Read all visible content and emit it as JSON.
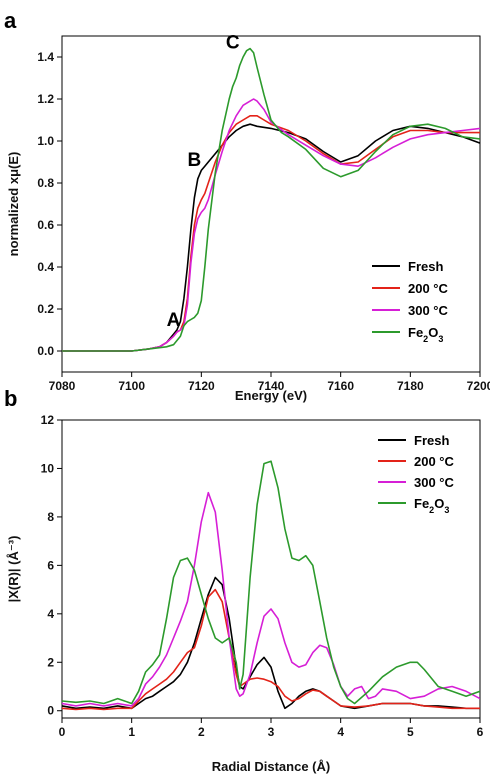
{
  "chart_data": [
    {
      "type": "line",
      "panel_label": "a",
      "xlabel": "Energy (eV)",
      "ylabel": "normalized xμ(E)",
      "xlim": [
        7080,
        7200
      ],
      "ylim": [
        -0.1,
        1.5
      ],
      "xticks": [
        "7080",
        "7100",
        "7120",
        "7140",
        "7160",
        "7180",
        "7200"
      ],
      "yticks": [
        "0.0",
        "0.2",
        "0.4",
        "0.6",
        "0.8",
        "1.0",
        "1.2",
        "1.4"
      ],
      "legend_position": "bottom-right",
      "annotations": [
        {
          "text": "A",
          "x": 7112,
          "y": 0.12
        },
        {
          "text": "B",
          "x": 7118,
          "y": 0.88
        },
        {
          "text": "C",
          "x": 7129,
          "y": 1.44
        }
      ],
      "series": [
        {
          "name": "Fresh",
          "color": "#000000",
          "x": [
            7080,
            7100,
            7105,
            7108,
            7110,
            7112,
            7113,
            7114,
            7115,
            7116,
            7117,
            7118,
            7119,
            7120,
            7121,
            7122,
            7124,
            7126,
            7128,
            7130,
            7132,
            7134,
            7136,
            7140,
            7145,
            7150,
            7155,
            7160,
            7165,
            7170,
            7175,
            7180,
            7185,
            7190,
            7195,
            7200
          ],
          "y": [
            0.0,
            0.0,
            0.01,
            0.02,
            0.04,
            0.08,
            0.1,
            0.14,
            0.25,
            0.4,
            0.58,
            0.73,
            0.82,
            0.86,
            0.88,
            0.9,
            0.94,
            0.98,
            1.02,
            1.05,
            1.07,
            1.08,
            1.07,
            1.06,
            1.04,
            1.01,
            0.95,
            0.9,
            0.93,
            1.0,
            1.05,
            1.07,
            1.06,
            1.04,
            1.02,
            0.99
          ]
        },
        {
          "name": "200 °C",
          "color": "#e32319",
          "x": [
            7080,
            7100,
            7105,
            7108,
            7110,
            7112,
            7113,
            7114,
            7115,
            7116,
            7117,
            7118,
            7119,
            7120,
            7121,
            7122,
            7124,
            7126,
            7128,
            7130,
            7132,
            7134,
            7136,
            7138,
            7140,
            7145,
            7150,
            7155,
            7160,
            7165,
            7170,
            7175,
            7180,
            7185,
            7190,
            7195,
            7200
          ],
          "y": [
            0.0,
            0.0,
            0.01,
            0.02,
            0.04,
            0.07,
            0.09,
            0.1,
            0.14,
            0.25,
            0.45,
            0.6,
            0.68,
            0.72,
            0.75,
            0.8,
            0.9,
            0.98,
            1.04,
            1.08,
            1.1,
            1.12,
            1.12,
            1.1,
            1.08,
            1.05,
            1.0,
            0.94,
            0.89,
            0.9,
            0.96,
            1.02,
            1.05,
            1.05,
            1.04,
            1.04,
            1.04
          ]
        },
        {
          "name": "300 °C",
          "color": "#d61fd6",
          "x": [
            7080,
            7100,
            7105,
            7108,
            7110,
            7112,
            7113,
            7114,
            7115,
            7116,
            7117,
            7118,
            7119,
            7120,
            7121,
            7122,
            7124,
            7126,
            7128,
            7130,
            7132,
            7134,
            7135,
            7136,
            7138,
            7140,
            7145,
            7150,
            7155,
            7160,
            7165,
            7170,
            7175,
            7180,
            7185,
            7190,
            7195,
            7200
          ],
          "y": [
            0.0,
            0.0,
            0.01,
            0.02,
            0.04,
            0.07,
            0.09,
            0.1,
            0.12,
            0.22,
            0.42,
            0.56,
            0.63,
            0.66,
            0.68,
            0.72,
            0.84,
            0.95,
            1.05,
            1.12,
            1.17,
            1.19,
            1.2,
            1.19,
            1.15,
            1.09,
            1.03,
            0.98,
            0.93,
            0.89,
            0.88,
            0.92,
            0.97,
            1.01,
            1.03,
            1.04,
            1.05,
            1.06
          ]
        },
        {
          "name": "Fe2O3",
          "color": "#2c9a2c",
          "x": [
            7080,
            7100,
            7105,
            7110,
            7112,
            7114,
            7115,
            7116,
            7117,
            7118,
            7119,
            7120,
            7121,
            7122,
            7124,
            7126,
            7128,
            7129,
            7130,
            7131,
            7132,
            7133,
            7134,
            7135,
            7136,
            7138,
            7140,
            7143,
            7145,
            7150,
            7155,
            7160,
            7165,
            7170,
            7175,
            7180,
            7185,
            7190,
            7195,
            7200
          ],
          "y": [
            0.0,
            0.0,
            0.01,
            0.02,
            0.03,
            0.07,
            0.12,
            0.14,
            0.15,
            0.16,
            0.18,
            0.24,
            0.4,
            0.58,
            0.85,
            1.05,
            1.2,
            1.26,
            1.3,
            1.36,
            1.4,
            1.43,
            1.44,
            1.42,
            1.35,
            1.22,
            1.1,
            1.04,
            1.02,
            0.96,
            0.87,
            0.83,
            0.86,
            0.95,
            1.03,
            1.07,
            1.08,
            1.06,
            1.02,
            1.01
          ]
        }
      ]
    },
    {
      "type": "line",
      "panel_label": "b",
      "xlabel": "Radial Distance (Å)",
      "ylabel": "|X(R)|  (Å⁻³)",
      "xlim": [
        0,
        6
      ],
      "ylim": [
        -0.3,
        12
      ],
      "xticks": [
        "0",
        "1",
        "2",
        "3",
        "4",
        "5",
        "6"
      ],
      "yticks": [
        "0",
        "2",
        "4",
        "6",
        "8",
        "10",
        "12"
      ],
      "legend_position": "top-right",
      "series": [
        {
          "name": "Fresh",
          "color": "#000000",
          "x": [
            0.0,
            0.2,
            0.4,
            0.6,
            0.8,
            1.0,
            1.1,
            1.2,
            1.3,
            1.4,
            1.5,
            1.6,
            1.7,
            1.8,
            1.9,
            2.0,
            2.1,
            2.2,
            2.3,
            2.4,
            2.5,
            2.55,
            2.6,
            2.7,
            2.8,
            2.9,
            3.0,
            3.1,
            3.2,
            3.3,
            3.4,
            3.5,
            3.6,
            3.7,
            3.8,
            3.9,
            4.0,
            4.2,
            4.4,
            4.6,
            4.8,
            5.0,
            5.2,
            5.4,
            5.6,
            5.8,
            6.0
          ],
          "y": [
            0.2,
            0.1,
            0.15,
            0.1,
            0.2,
            0.1,
            0.3,
            0.5,
            0.6,
            0.8,
            1.0,
            1.2,
            1.5,
            2.0,
            2.8,
            3.8,
            4.8,
            5.5,
            5.2,
            3.8,
            1.8,
            1.0,
            0.9,
            1.4,
            1.9,
            2.2,
            1.8,
            0.8,
            0.1,
            0.3,
            0.6,
            0.8,
            0.9,
            0.8,
            0.6,
            0.4,
            0.2,
            0.1,
            0.2,
            0.3,
            0.3,
            0.3,
            0.2,
            0.2,
            0.15,
            0.1,
            0.1
          ]
        },
        {
          "name": "200 °C",
          "color": "#e32319",
          "x": [
            0.0,
            0.2,
            0.4,
            0.6,
            0.8,
            1.0,
            1.1,
            1.2,
            1.3,
            1.4,
            1.5,
            1.6,
            1.7,
            1.8,
            1.9,
            2.0,
            2.1,
            2.2,
            2.3,
            2.4,
            2.5,
            2.55,
            2.6,
            2.7,
            2.8,
            2.9,
            3.0,
            3.1,
            3.2,
            3.3,
            3.4,
            3.5,
            3.6,
            3.7,
            3.8,
            3.9,
            4.0,
            4.2,
            4.4,
            4.6,
            4.8,
            5.0,
            5.2,
            5.4,
            5.6,
            5.8,
            6.0
          ],
          "y": [
            0.1,
            0.05,
            0.1,
            0.05,
            0.1,
            0.1,
            0.4,
            0.7,
            0.9,
            1.1,
            1.3,
            1.6,
            2.0,
            2.4,
            2.6,
            3.5,
            4.7,
            5.0,
            4.5,
            3.0,
            1.5,
            1.0,
            1.1,
            1.3,
            1.35,
            1.3,
            1.2,
            1.0,
            0.6,
            0.4,
            0.5,
            0.7,
            0.85,
            0.8,
            0.6,
            0.4,
            0.2,
            0.15,
            0.2,
            0.3,
            0.3,
            0.3,
            0.2,
            0.15,
            0.1,
            0.1,
            0.1
          ]
        },
        {
          "name": "300 °C",
          "color": "#d61fd6",
          "x": [
            0.0,
            0.2,
            0.4,
            0.6,
            0.8,
            1.0,
            1.1,
            1.2,
            1.3,
            1.4,
            1.5,
            1.6,
            1.7,
            1.8,
            1.9,
            2.0,
            2.1,
            2.2,
            2.3,
            2.4,
            2.5,
            2.55,
            2.6,
            2.7,
            2.8,
            2.9,
            3.0,
            3.1,
            3.2,
            3.3,
            3.4,
            3.5,
            3.6,
            3.7,
            3.8,
            3.9,
            4.0,
            4.1,
            4.2,
            4.3,
            4.4,
            4.5,
            4.6,
            4.8,
            5.0,
            5.2,
            5.4,
            5.6,
            5.8,
            6.0
          ],
          "y": [
            0.3,
            0.2,
            0.3,
            0.2,
            0.3,
            0.2,
            0.5,
            1.1,
            1.4,
            1.8,
            2.3,
            3.0,
            3.7,
            4.5,
            6.0,
            7.8,
            9.0,
            8.2,
            5.8,
            3.0,
            0.9,
            0.6,
            0.7,
            1.5,
            2.8,
            3.9,
            4.2,
            3.8,
            2.8,
            2.0,
            1.8,
            1.9,
            2.4,
            2.7,
            2.6,
            1.9,
            1.0,
            0.6,
            0.9,
            1.0,
            0.5,
            0.6,
            0.9,
            0.8,
            0.5,
            0.6,
            0.9,
            1.0,
            0.8,
            0.5
          ]
        },
        {
          "name": "Fe2O3",
          "color": "#2c9a2c",
          "x": [
            0.0,
            0.2,
            0.4,
            0.6,
            0.8,
            1.0,
            1.1,
            1.2,
            1.3,
            1.4,
            1.5,
            1.6,
            1.7,
            1.8,
            1.9,
            2.0,
            2.1,
            2.2,
            2.3,
            2.4,
            2.5,
            2.55,
            2.6,
            2.7,
            2.8,
            2.9,
            3.0,
            3.1,
            3.2,
            3.3,
            3.4,
            3.5,
            3.6,
            3.7,
            3.8,
            3.9,
            4.0,
            4.1,
            4.2,
            4.4,
            4.6,
            4.8,
            5.0,
            5.1,
            5.2,
            5.4,
            5.6,
            5.8,
            6.0
          ],
          "y": [
            0.4,
            0.35,
            0.4,
            0.3,
            0.5,
            0.3,
            0.8,
            1.6,
            1.9,
            2.3,
            3.8,
            5.5,
            6.2,
            6.3,
            5.8,
            4.8,
            3.8,
            3.0,
            2.8,
            3.0,
            2.0,
            0.9,
            1.5,
            5.5,
            8.5,
            10.2,
            10.3,
            9.2,
            7.5,
            6.3,
            6.2,
            6.4,
            6.0,
            4.5,
            3.0,
            1.8,
            1.0,
            0.5,
            0.3,
            0.8,
            1.4,
            1.8,
            2.0,
            2.0,
            1.7,
            1.0,
            0.8,
            0.6,
            0.8
          ]
        }
      ]
    }
  ]
}
